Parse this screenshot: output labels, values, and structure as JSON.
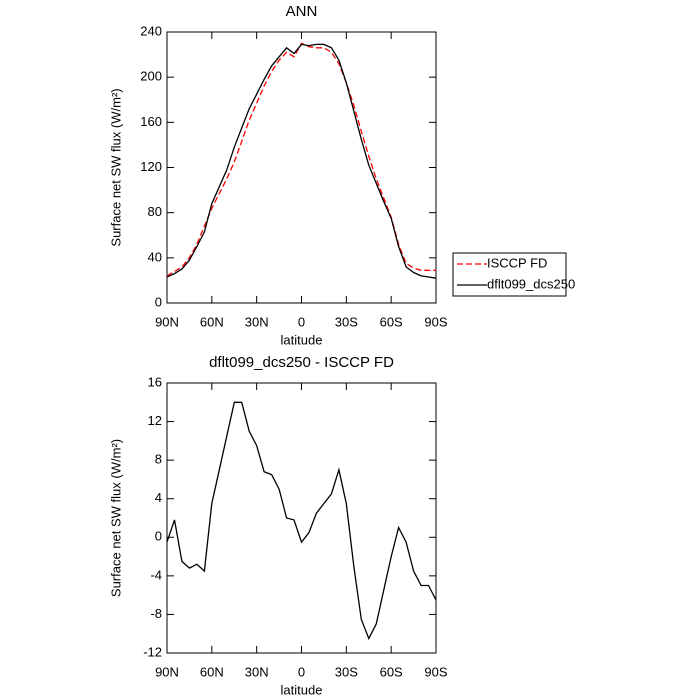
{
  "chart_data": [
    {
      "type": "line",
      "title": "ANN",
      "xlabel": "latitude",
      "ylabel": "Surface net SW flux (W/m²)",
      "x": [
        90,
        85,
        80,
        75,
        70,
        65,
        60,
        55,
        50,
        45,
        40,
        35,
        30,
        25,
        20,
        15,
        10,
        5,
        0,
        -5,
        -10,
        -15,
        -20,
        -25,
        -30,
        -35,
        -40,
        -45,
        -50,
        -55,
        -60,
        -65,
        -70,
        -75,
        -80,
        -85,
        -90
      ],
      "xlim": [
        90,
        -90
      ],
      "xticks": [
        {
          "value": 90,
          "label": "90N"
        },
        {
          "value": 60,
          "label": "60N"
        },
        {
          "value": 30,
          "label": "30N"
        },
        0,
        {
          "value": -30,
          "label": "30S"
        },
        {
          "value": -60,
          "label": "60S"
        },
        {
          "value": -90,
          "label": "90S"
        }
      ],
      "ylim": [
        0,
        240
      ],
      "yticks": [
        0,
        40,
        80,
        120,
        160,
        200,
        240
      ],
      "legend": "outside-right",
      "series": [
        {
          "name": "ISCCP FD",
          "color": "#ff0000",
          "line_style": "dashed",
          "values": [
            24,
            28,
            32,
            40,
            52,
            68,
            84,
            97,
            110,
            125,
            143,
            162,
            177,
            192,
            205,
            215,
            222,
            218,
            230,
            227,
            226,
            226,
            222,
            212,
            195,
            175,
            152,
            130,
            110,
            93,
            76,
            52,
            35,
            31,
            29,
            29,
            29
          ]
        },
        {
          "name": "dflt099_dcs250",
          "color": "#000000",
          "line_style": "solid",
          "values": [
            23,
            26,
            30,
            38,
            50,
            63,
            88,
            103,
            118,
            138,
            155,
            172,
            185,
            198,
            210,
            218,
            226,
            221,
            229,
            228,
            229,
            229,
            226,
            215,
            195,
            170,
            145,
            122,
            106,
            90,
            75,
            50,
            32,
            27,
            24,
            23,
            22
          ]
        }
      ]
    },
    {
      "type": "line",
      "title": "dflt099_dcs250 - ISCCP FD",
      "xlabel": "latitude",
      "ylabel": "Surface net SW flux (W/m²)",
      "x": [
        90,
        85,
        80,
        75,
        70,
        65,
        60,
        55,
        50,
        45,
        40,
        35,
        30,
        25,
        20,
        15,
        10,
        5,
        0,
        -5,
        -10,
        -15,
        -20,
        -25,
        -30,
        -35,
        -40,
        -45,
        -50,
        -55,
        -60,
        -65,
        -70,
        -75,
        -80,
        -85,
        -90
      ],
      "xlim": [
        90,
        -90
      ],
      "xticks": [
        {
          "value": 90,
          "label": "90N"
        },
        {
          "value": 60,
          "label": "60N"
        },
        {
          "value": 30,
          "label": "30N"
        },
        0,
        {
          "value": -30,
          "label": "30S"
        },
        {
          "value": -60,
          "label": "60S"
        },
        {
          "value": -90,
          "label": "90S"
        }
      ],
      "ylim": [
        -12,
        16
      ],
      "yticks": [
        -12,
        -8,
        -4,
        0,
        4,
        8,
        12,
        16
      ],
      "series": [
        {
          "color": "#000000",
          "line_style": "solid",
          "values": [
            -0.5,
            1.8,
            -2.5,
            -3.2,
            -2.8,
            -3.5,
            3.5,
            7,
            10.5,
            14,
            14,
            11,
            9.5,
            6.8,
            6.5,
            5,
            2,
            1.8,
            -0.5,
            0.5,
            2.5,
            3.5,
            4.5,
            7,
            3.5,
            -3,
            -8.5,
            -10.5,
            -9,
            -5.5,
            -2,
            1,
            -0.5,
            -3.5,
            -5,
            -5,
            -6.5
          ]
        }
      ]
    }
  ]
}
